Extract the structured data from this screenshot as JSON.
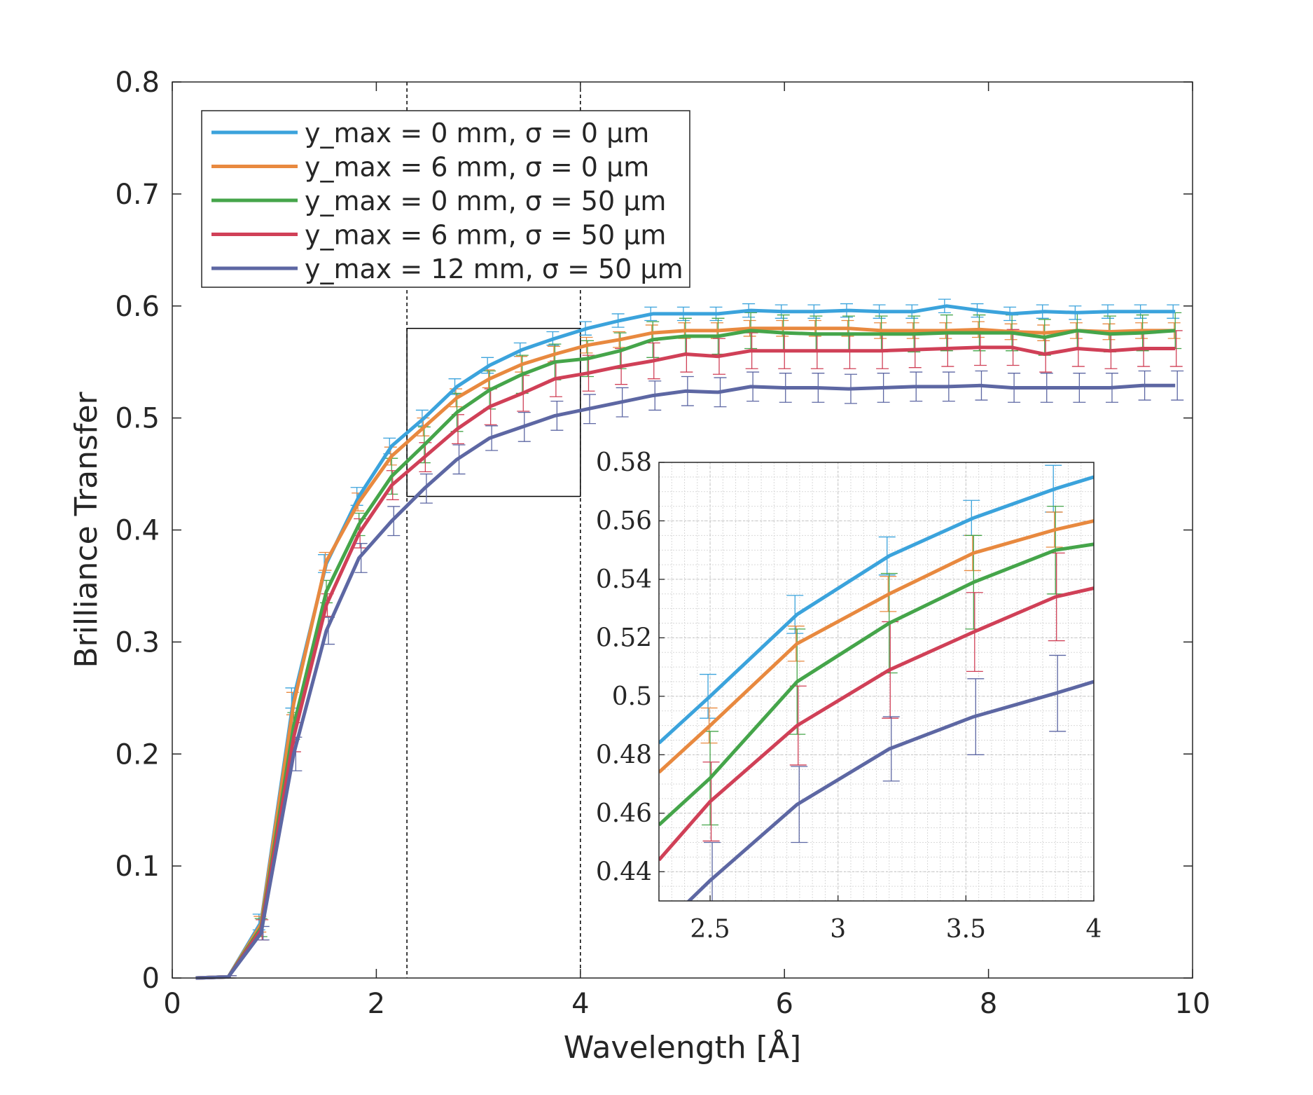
{
  "chart_data": [
    {
      "type": "line",
      "panel": "main",
      "title": "",
      "xlabel": "Wavelength [Å]",
      "ylabel": "Brilliance Transfer",
      "xlim": [
        0,
        10
      ],
      "ylim": [
        0,
        0.8
      ],
      "x_ticks": [
        0,
        2,
        4,
        6,
        8,
        10
      ],
      "x_tick_labels": [
        "0",
        "2",
        "4",
        "6",
        "8",
        "10"
      ],
      "y_ticks": [
        0,
        0.1,
        0.2,
        0.3,
        0.4,
        0.5,
        0.6,
        0.7,
        0.8
      ],
      "y_tick_labels": [
        "0",
        "0.1",
        "0.2",
        "0.3",
        "0.4",
        "0.5",
        "0.6",
        "0.7",
        "0.8"
      ],
      "grid": false,
      "legend_position": "top-left",
      "x": [
        0.23,
        0.55,
        0.87,
        1.19,
        1.51,
        1.83,
        2.15,
        2.47,
        2.79,
        3.11,
        3.43,
        3.75,
        4.07,
        4.39,
        4.71,
        5.03,
        5.35,
        5.67,
        5.99,
        6.31,
        6.63,
        6.95,
        7.27,
        7.59,
        7.91,
        8.23,
        8.55,
        8.87,
        9.19,
        9.51,
        9.83
      ],
      "series": [
        {
          "name": "y_max = 0 mm, σ = 0 μm",
          "color": "#3ba3dc",
          "values": [
            0.0,
            0.001,
            0.05,
            0.25,
            0.37,
            0.43,
            0.475,
            0.5,
            0.528,
            0.547,
            0.561,
            0.571,
            0.58,
            0.587,
            0.593,
            0.593,
            0.593,
            0.596,
            0.595,
            0.595,
            0.596,
            0.595,
            0.595,
            0.6,
            0.596,
            0.593,
            0.595,
            0.594,
            0.595,
            0.595,
            0.595
          ],
          "errors": [
            0,
            0.001,
            0.007,
            0.009,
            0.008,
            0.008,
            0.007,
            0.007,
            0.007,
            0.007,
            0.006,
            0.006,
            0.006,
            0.006,
            0.006,
            0.006,
            0.006,
            0.006,
            0.006,
            0.006,
            0.006,
            0.006,
            0.006,
            0.006,
            0.006,
            0.006,
            0.006,
            0.006,
            0.006,
            0.006,
            0.006
          ]
        },
        {
          "name": "y_max = 6 mm, σ = 0 μm",
          "color": "#e8893f",
          "values": [
            0.0,
            0.001,
            0.048,
            0.245,
            0.372,
            0.425,
            0.466,
            0.492,
            0.518,
            0.535,
            0.548,
            0.557,
            0.565,
            0.57,
            0.576,
            0.578,
            0.578,
            0.58,
            0.58,
            0.58,
            0.58,
            0.578,
            0.578,
            0.578,
            0.579,
            0.577,
            0.576,
            0.578,
            0.577,
            0.578,
            0.578
          ],
          "errors": [
            0,
            0.001,
            0.007,
            0.01,
            0.008,
            0.008,
            0.008,
            0.008,
            0.008,
            0.008,
            0.007,
            0.007,
            0.007,
            0.007,
            0.007,
            0.007,
            0.007,
            0.007,
            0.007,
            0.007,
            0.007,
            0.007,
            0.007,
            0.007,
            0.007,
            0.007,
            0.007,
            0.007,
            0.007,
            0.007,
            0.007
          ]
        },
        {
          "name": "y_max = 0 mm, σ = 50 μm",
          "color": "#45a54a",
          "values": [
            0.0,
            0.001,
            0.045,
            0.225,
            0.345,
            0.405,
            0.448,
            0.476,
            0.505,
            0.525,
            0.539,
            0.55,
            0.553,
            0.56,
            0.57,
            0.573,
            0.573,
            0.578,
            0.576,
            0.575,
            0.575,
            0.575,
            0.575,
            0.576,
            0.576,
            0.576,
            0.572,
            0.578,
            0.575,
            0.576,
            0.578
          ],
          "errors": [
            0,
            0.001,
            0.008,
            0.012,
            0.01,
            0.01,
            0.016,
            0.016,
            0.017,
            0.017,
            0.017,
            0.016,
            0.016,
            0.016,
            0.016,
            0.016,
            0.016,
            0.016,
            0.016,
            0.016,
            0.016,
            0.016,
            0.016,
            0.016,
            0.016,
            0.016,
            0.016,
            0.016,
            0.016,
            0.016,
            0.016
          ]
        },
        {
          "name": "y_max = 6 mm, σ = 50 μm",
          "color": "#d04057",
          "values": [
            0.0,
            0.001,
            0.043,
            0.215,
            0.333,
            0.397,
            0.44,
            0.465,
            0.49,
            0.51,
            0.522,
            0.535,
            0.54,
            0.546,
            0.551,
            0.557,
            0.555,
            0.56,
            0.56,
            0.56,
            0.56,
            0.56,
            0.561,
            0.562,
            0.563,
            0.563,
            0.557,
            0.562,
            0.56,
            0.562,
            0.562
          ],
          "errors": [
            0,
            0.001,
            0.009,
            0.013,
            0.01,
            0.013,
            0.013,
            0.013,
            0.013,
            0.016,
            0.016,
            0.016,
            0.016,
            0.016,
            0.016,
            0.016,
            0.016,
            0.016,
            0.016,
            0.016,
            0.016,
            0.016,
            0.016,
            0.016,
            0.016,
            0.016,
            0.016,
            0.016,
            0.016,
            0.016,
            0.016
          ]
        },
        {
          "name": "y_max = 12 mm, σ = 50 μm",
          "color": "#5d67a3",
          "values": [
            0.0,
            0.001,
            0.04,
            0.2,
            0.31,
            0.375,
            0.408,
            0.437,
            0.463,
            0.482,
            0.492,
            0.502,
            0.508,
            0.514,
            0.52,
            0.524,
            0.523,
            0.528,
            0.527,
            0.527,
            0.526,
            0.527,
            0.528,
            0.528,
            0.529,
            0.527,
            0.527,
            0.527,
            0.527,
            0.529,
            0.529
          ],
          "errors": [
            0,
            0.001,
            0.006,
            0.015,
            0.012,
            0.013,
            0.013,
            0.013,
            0.013,
            0.011,
            0.013,
            0.013,
            0.013,
            0.013,
            0.013,
            0.013,
            0.013,
            0.013,
            0.013,
            0.013,
            0.013,
            0.013,
            0.013,
            0.013,
            0.013,
            0.013,
            0.013,
            0.013,
            0.013,
            0.013,
            0.013
          ]
        }
      ],
      "zoom_region": {
        "x": [
          2.3,
          4.0
        ],
        "y": [
          0.43,
          0.58
        ]
      }
    },
    {
      "type": "line",
      "panel": "inset",
      "title": "",
      "xlabel": "",
      "ylabel": "",
      "xlim": [
        2.3,
        4.0
      ],
      "ylim": [
        0.43,
        0.58
      ],
      "x_ticks": [
        2.5,
        3,
        3.5,
        4
      ],
      "x_tick_labels": [
        "2.5",
        "3",
        "3.5",
        "4"
      ],
      "y_ticks": [
        0.44,
        0.46,
        0.48,
        0.5,
        0.52,
        0.54,
        0.56,
        0.58
      ],
      "y_tick_labels": [
        "0.44",
        "0.46",
        "0.48",
        "0.5",
        "0.52",
        "0.54",
        "0.56",
        "0.58"
      ],
      "grid": true,
      "minor_grid": true,
      "x": [
        2.3,
        2.5,
        2.84,
        3.2,
        3.53,
        3.85,
        4.0
      ],
      "series": [
        {
          "color": "#3ba3dc",
          "values": [
            0.484,
            0.5,
            0.528,
            0.548,
            0.561,
            0.571,
            0.575
          ],
          "errors": [
            null,
            0.0075,
            0.0065,
            0.0065,
            0.006,
            0.008,
            null
          ]
        },
        {
          "color": "#e8893f",
          "values": [
            0.474,
            0.49,
            0.518,
            0.535,
            0.549,
            0.557,
            0.56
          ],
          "errors": [
            null,
            0.006,
            0.006,
            0.006,
            0.006,
            0.006,
            null
          ]
        },
        {
          "color": "#45a54a",
          "values": [
            0.456,
            0.472,
            0.505,
            0.525,
            0.539,
            0.55,
            0.552
          ],
          "errors": [
            null,
            0.016,
            0.018,
            0.017,
            0.016,
            0.015,
            null
          ]
        },
        {
          "color": "#d04057",
          "values": [
            0.444,
            0.464,
            0.49,
            0.509,
            0.522,
            0.534,
            0.537
          ],
          "errors": [
            null,
            0.0135,
            0.0135,
            0.0165,
            0.0135,
            0.015,
            null
          ]
        },
        {
          "color": "#5d67a3",
          "values": [
            0.42,
            0.437,
            0.463,
            0.482,
            0.493,
            0.501,
            0.505
          ],
          "errors": [
            null,
            0.013,
            0.013,
            0.011,
            0.013,
            0.013,
            null
          ]
        }
      ]
    }
  ]
}
